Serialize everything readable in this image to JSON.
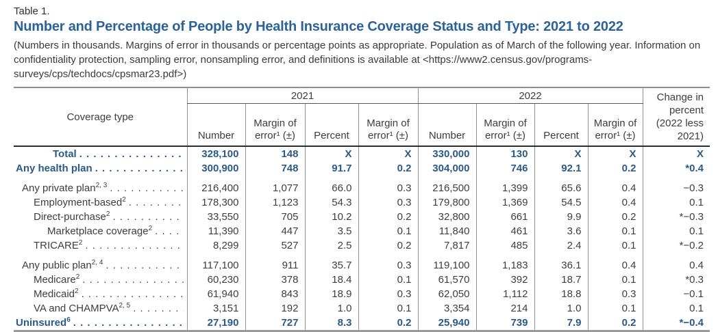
{
  "header": {
    "table_label": "Table 1.",
    "title": "Number and Percentage of People by Health Insurance Coverage Status and Type: 2021 to 2022",
    "note": "(Numbers in thousands. Margins of error in thousands or percentage points as appropriate. Population as of March of the following year. Information on confidentiality protection, sampling error, nonsampling error, and definitions is available at <https://www2.census.gov/programs-surveys/cps/techdocs/cpsmar23.pdf>)"
  },
  "colors": {
    "title_blue": "#2b6398",
    "emphasis_blue": "#2a5a86",
    "grid_gray": "#8f8f8f",
    "heavy_rule": "#2b2b2b"
  },
  "table": {
    "columns": {
      "coverage": "Coverage type",
      "group_2021": "2021",
      "group_2022": "2022",
      "number": "Number",
      "margin_of_error": "Margin of error¹ (±)",
      "percent": "Percent",
      "change": "Change in percent (2022 less 2021)"
    },
    "rows": [
      {
        "label": "Total",
        "sup": "",
        "indent": "total",
        "emph": true,
        "group_start": false,
        "values": [
          "328,100",
          "148",
          "X",
          "X",
          "330,000",
          "130",
          "X",
          "X",
          "X"
        ]
      },
      {
        "label": "Any health plan",
        "sup": "",
        "indent": "0",
        "emph": true,
        "group_start": false,
        "values": [
          "300,900",
          "748",
          "91.7",
          "0.2",
          "304,000",
          "746",
          "92.1",
          "0.2",
          "*0.4"
        ]
      },
      {
        "label": "Any private plan",
        "sup": "2, 3",
        "indent": "1",
        "emph": false,
        "group_start": true,
        "values": [
          "216,400",
          "1,077",
          "66.0",
          "0.3",
          "216,500",
          "1,399",
          "65.6",
          "0.4",
          "−0.3"
        ]
      },
      {
        "label": "Employment-based",
        "sup": "2",
        "indent": "2",
        "emph": false,
        "group_start": false,
        "values": [
          "178,300",
          "1,123",
          "54.3",
          "0.3",
          "179,800",
          "1,369",
          "54.5",
          "0.4",
          "0.1"
        ]
      },
      {
        "label": "Direct-purchase",
        "sup": "2",
        "indent": "2",
        "emph": false,
        "group_start": false,
        "values": [
          "33,550",
          "705",
          "10.2",
          "0.2",
          "32,800",
          "661",
          "9.9",
          "0.2",
          "*−0.3"
        ]
      },
      {
        "label": "Marketplace coverage",
        "sup": "2",
        "indent": "3",
        "emph": false,
        "group_start": false,
        "values": [
          "11,390",
          "447",
          "3.5",
          "0.1",
          "11,840",
          "461",
          "3.6",
          "0.1",
          "0.1"
        ]
      },
      {
        "label": "TRICARE",
        "sup": "2",
        "indent": "2",
        "emph": false,
        "group_start": false,
        "values": [
          "8,299",
          "527",
          "2.5",
          "0.2",
          "7,817",
          "485",
          "2.4",
          "0.1",
          "*−0.2"
        ]
      },
      {
        "label": "Any public plan",
        "sup": "2, 4",
        "indent": "1",
        "emph": false,
        "group_start": true,
        "values": [
          "117,100",
          "911",
          "35.7",
          "0.3",
          "119,100",
          "1,183",
          "36.1",
          "0.4",
          "0.4"
        ]
      },
      {
        "label": "Medicare",
        "sup": "2",
        "indent": "2",
        "emph": false,
        "group_start": false,
        "values": [
          "60,230",
          "378",
          "18.4",
          "0.1",
          "61,570",
          "392",
          "18.7",
          "0.1",
          "*0.3"
        ]
      },
      {
        "label": "Medicaid",
        "sup": "2",
        "indent": "2",
        "emph": false,
        "group_start": false,
        "values": [
          "61,940",
          "843",
          "18.9",
          "0.3",
          "62,050",
          "1,112",
          "18.8",
          "0.3",
          "−0.1"
        ]
      },
      {
        "label": "VA and CHAMPVA",
        "sup": "2, 5",
        "indent": "2",
        "emph": false,
        "group_start": false,
        "values": [
          "3,151",
          "192",
          "1.0",
          "0.1",
          "3,354",
          "214",
          "1.0",
          "0.1",
          "0.1"
        ]
      },
      {
        "label": "Uninsured",
        "sup": "6",
        "indent": "0",
        "emph": true,
        "group_start": false,
        "values": [
          "27,190",
          "727",
          "8.3",
          "0.2",
          "25,940",
          "739",
          "7.9",
          "0.2",
          "*−0.4"
        ]
      }
    ]
  }
}
